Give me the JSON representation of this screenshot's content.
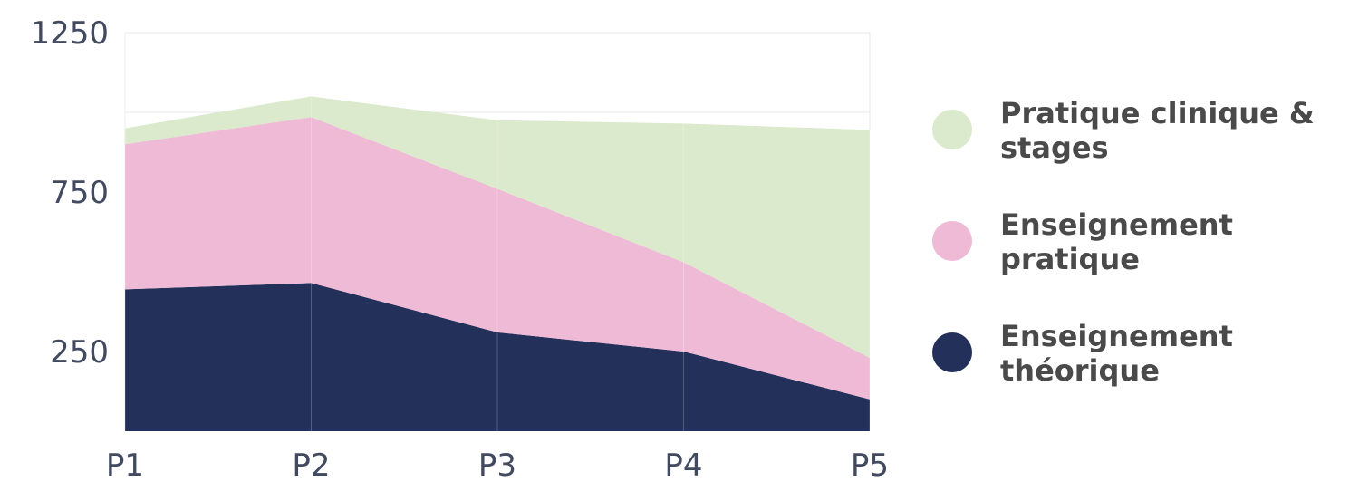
{
  "chart_data": {
    "type": "area",
    "stacked": true,
    "categories": [
      "P1",
      "P2",
      "P3",
      "P4",
      "P5"
    ],
    "ylim": [
      0,
      1250
    ],
    "yticks": [
      "250",
      "750",
      "1250"
    ],
    "grid": true,
    "legend_position": "right",
    "series": [
      {
        "name": "Enseignement théorique",
        "legend_lines": [
          "Enseignement",
          "théorique"
        ],
        "color": "#23305a",
        "values": [
          445,
          465,
          310,
          250,
          100
        ]
      },
      {
        "name": "Enseignement pratique",
        "legend_lines": [
          "Enseignement",
          "pratique"
        ],
        "color": "#efbad6",
        "values": [
          455,
          520,
          450,
          280,
          130
        ]
      },
      {
        "name": "Pratique clinique & stages",
        "legend_lines": [
          "Pratique clinique &",
          "stages"
        ],
        "color": "#dbe9cc",
        "values": [
          50,
          65,
          215,
          435,
          715
        ]
      }
    ]
  }
}
